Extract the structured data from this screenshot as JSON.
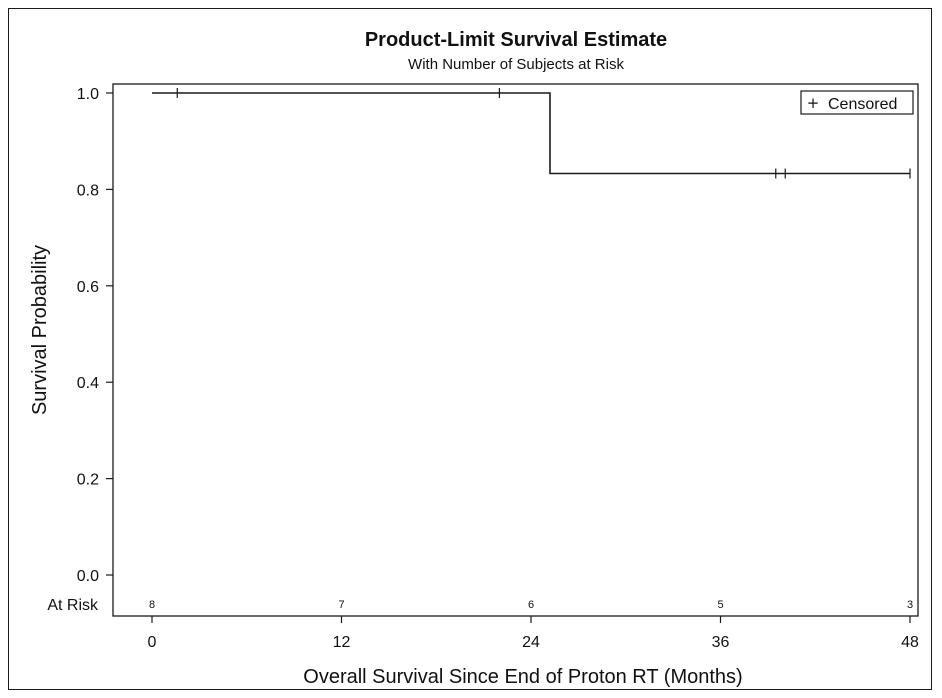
{
  "chart_data": {
    "type": "line",
    "title": "Product-Limit Survival Estimate",
    "subtitle": "With Number of Subjects at Risk",
    "xlabel": "Overall Survival Since End of Proton RT (Months)",
    "ylabel": "Survival Probability",
    "xlim": [
      0,
      48
    ],
    "ylim": [
      0,
      1.0
    ],
    "x_ticks": [
      "0",
      "12",
      "24",
      "36",
      "48"
    ],
    "y_ticks": [
      "0.0",
      "0.2",
      "0.4",
      "0.6",
      "0.8",
      "1.0"
    ],
    "grid": false,
    "series": [
      {
        "x": [
          0,
          25.2,
          25.2,
          48
        ],
        "y": [
          1.0,
          1.0,
          0.833,
          0.833
        ]
      }
    ],
    "censored": {
      "label": "Censored",
      "marker": "+",
      "x": [
        1.6,
        22.0,
        39.5,
        40.1,
        48.0
      ],
      "y": [
        1.0,
        1.0,
        0.833,
        0.833,
        0.833
      ]
    },
    "legend_position": "top-right",
    "at_risk": {
      "label": "At Risk",
      "x": [
        0,
        12,
        24,
        36,
        48
      ],
      "counts": [
        "8",
        "7",
        "6",
        "5",
        "3"
      ]
    }
  }
}
